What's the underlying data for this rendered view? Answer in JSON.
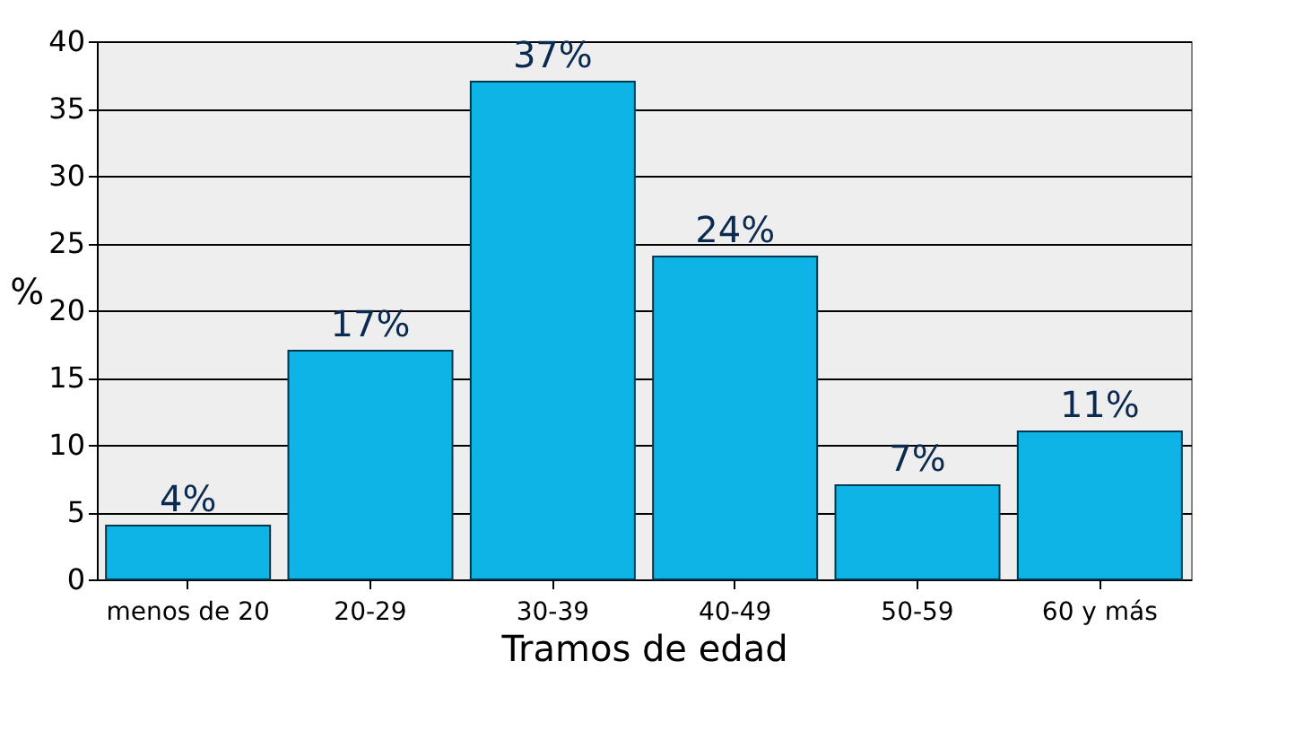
{
  "chart_data": {
    "type": "bar",
    "xlabel": "Tramos de edad",
    "ylabel": "%",
    "categories": [
      "menos de 20",
      "20-29",
      "30-39",
      "40-49",
      "50-59",
      "60 y más"
    ],
    "values": [
      4,
      17,
      37,
      24,
      7,
      11
    ],
    "value_labels": [
      "4%",
      "17%",
      "37%",
      "24%",
      "7%",
      "11%"
    ],
    "color": "#0fb4e6",
    "ylim": [
      0,
      40
    ],
    "yticks": [
      0,
      5,
      10,
      15,
      20,
      25,
      30,
      35,
      40
    ],
    "grid": "y"
  }
}
